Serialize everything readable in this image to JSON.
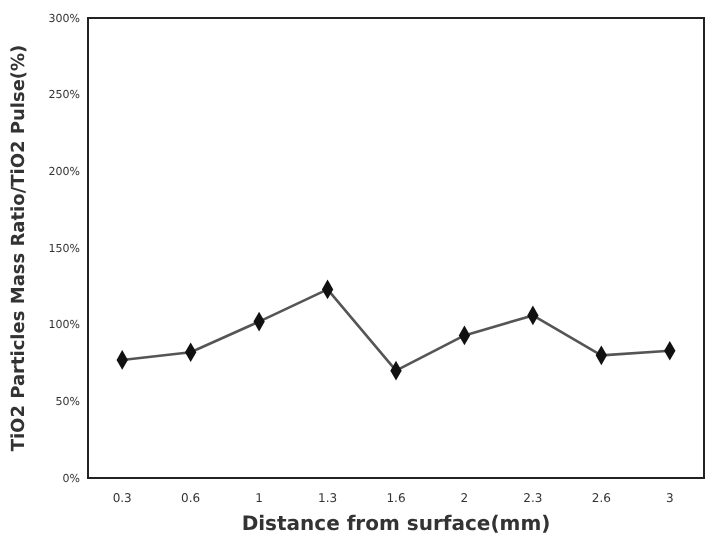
{
  "chart_data": {
    "type": "line",
    "xlabel": "Distance from surface(mm)",
    "ylabel": "TiO2  Particles Mass Ratio/TiO2  Pulse(%)",
    "categories": [
      "0.3",
      "0.6",
      "1",
      "1.3",
      "1.6",
      "2",
      "2.3",
      "2.6",
      "3"
    ],
    "series": [
      {
        "color": "#555555",
        "values": [
          77,
          82,
          102,
          123,
          70,
          93,
          106,
          80,
          83
        ]
      }
    ],
    "ylim": [
      0,
      300
    ],
    "yticks": [
      {
        "value": 0,
        "label": "0%"
      },
      {
        "value": 50,
        "label": "50%"
      },
      {
        "value": 100,
        "label": "100%"
      },
      {
        "value": 150,
        "label": "150%"
      },
      {
        "value": 200,
        "label": "200%"
      },
      {
        "value": 250,
        "label": "250%"
      },
      {
        "value": 300,
        "label": "300%"
      }
    ],
    "marker": "diamond",
    "grid": false
  }
}
